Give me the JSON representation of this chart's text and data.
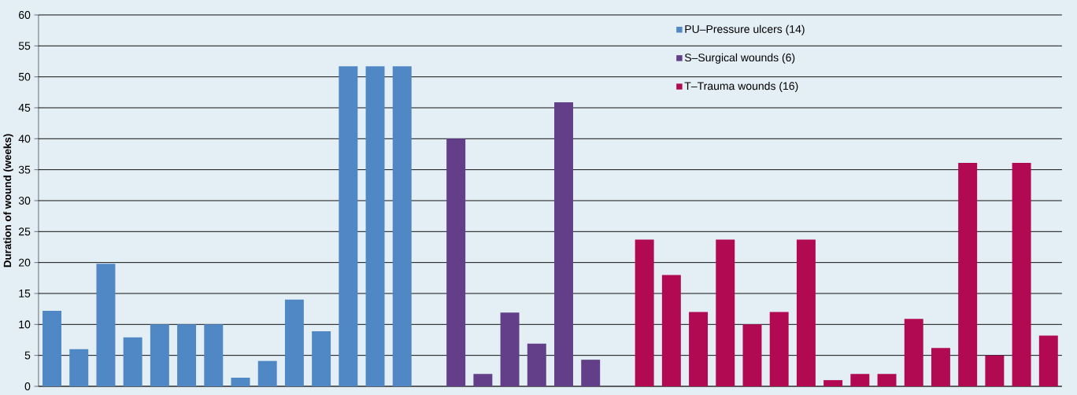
{
  "chart_data": {
    "type": "bar",
    "ylabel": "Duration of wound (weeks)",
    "categories": [
      null,
      null,
      null,
      null,
      null,
      null,
      null,
      null,
      null,
      null,
      null,
      null,
      null,
      null,
      null,
      null,
      null,
      null,
      null,
      null,
      null,
      null,
      null,
      null,
      null,
      null,
      null,
      null,
      null,
      null,
      null,
      null,
      null,
      null,
      null,
      null,
      null,
      null
    ],
    "series": [
      {
        "name": "PU–Pressure ulcers (14)",
        "color": "#5088c5",
        "values": [
          12.2,
          6,
          19.8,
          7.9,
          10,
          10,
          10,
          1.4,
          4.1,
          14,
          8.9,
          51.7,
          51.7,
          51.7,
          null,
          null,
          null,
          null,
          null,
          null,
          null,
          null,
          null,
          null,
          null,
          null,
          null,
          null,
          null,
          null,
          null,
          null,
          null,
          null,
          null,
          null,
          null,
          null
        ]
      },
      {
        "name": "S–Surgical wounds (6)",
        "color": "#623f88",
        "values": [
          null,
          null,
          null,
          null,
          null,
          null,
          null,
          null,
          null,
          null,
          null,
          null,
          null,
          null,
          null,
          40,
          2,
          11.9,
          6.9,
          45.9,
          4.3,
          null,
          null,
          null,
          null,
          null,
          null,
          null,
          null,
          null,
          null,
          null,
          null,
          null,
          null,
          null,
          null,
          null
        ]
      },
      {
        "name": "T–Trauma wounds (16)",
        "color": "#b20953",
        "values": [
          null,
          null,
          null,
          null,
          null,
          null,
          null,
          null,
          null,
          null,
          null,
          null,
          null,
          null,
          null,
          null,
          null,
          null,
          null,
          null,
          null,
          null,
          23.7,
          18,
          12,
          23.7,
          10,
          12,
          23.7,
          1,
          2,
          2,
          10.9,
          6.2,
          36.1,
          5,
          36.1,
          8.2
        ]
      }
    ],
    "ylim": [
      0,
      60
    ],
    "yticks": [
      0,
      5,
      10,
      15,
      20,
      25,
      30,
      35,
      40,
      45,
      50,
      55,
      60
    ],
    "grid": "y",
    "legend": "top right",
    "tick_labels": "y"
  }
}
